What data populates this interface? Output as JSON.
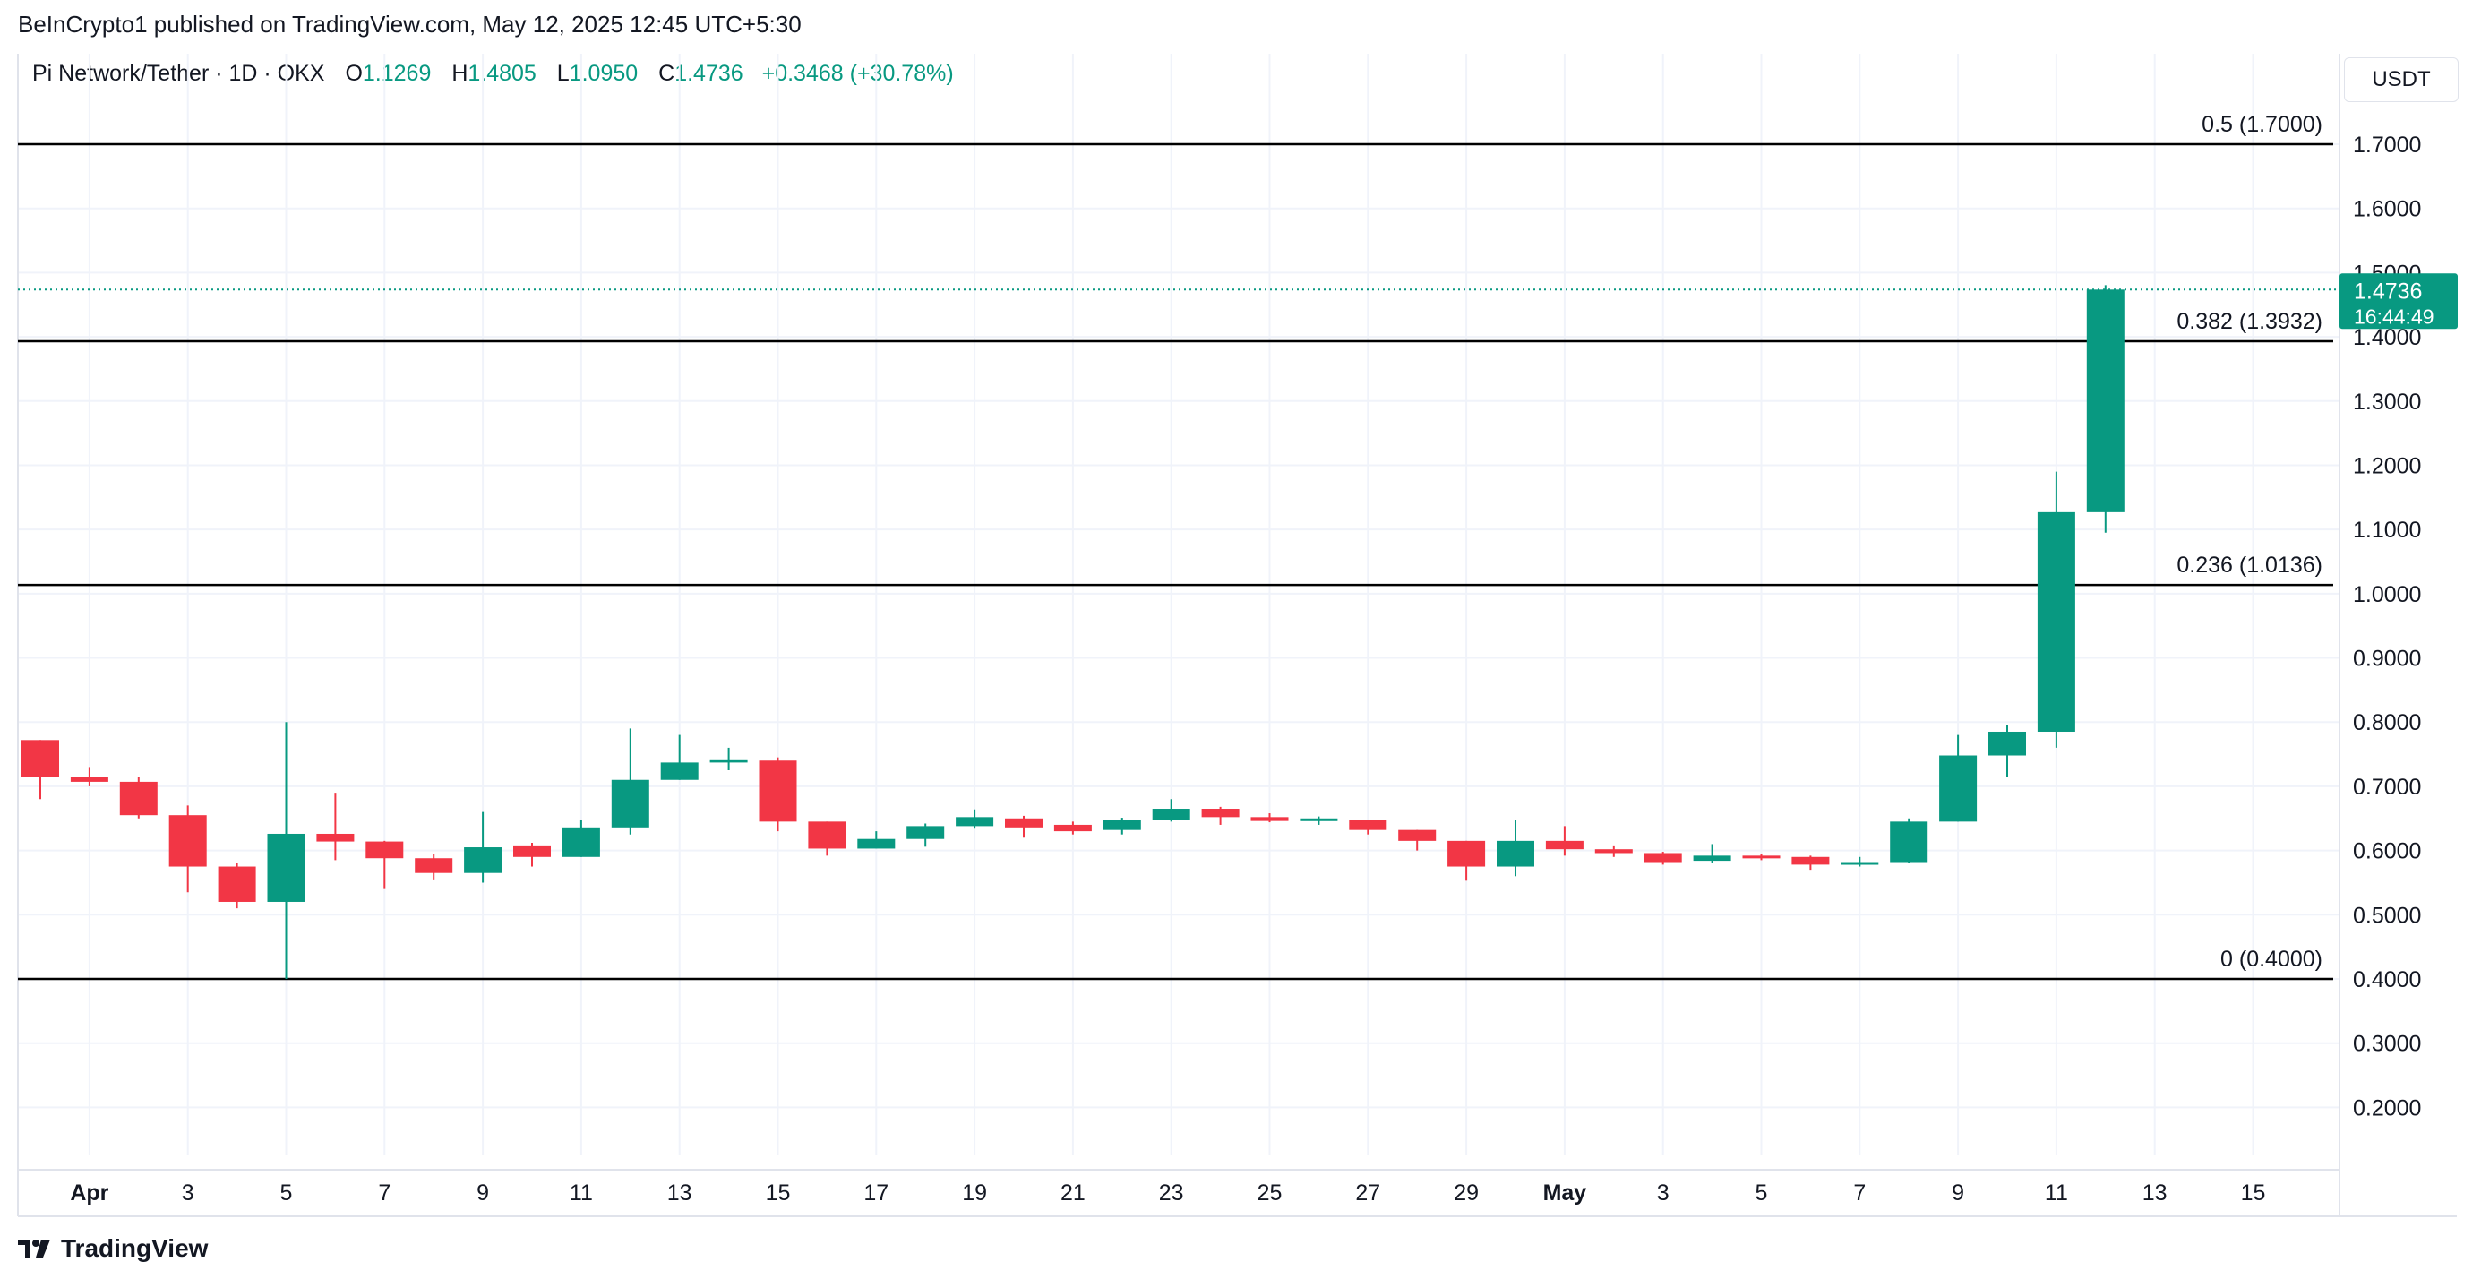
{
  "header": {
    "publisher_line": "BeInCrypto1 published on TradingView.com, May 12, 2025 12:45 UTC+5:30",
    "symbol": "Pi Network/Tether · 1D · OKX",
    "open_label": "O",
    "open_value": "1.1269",
    "high_label": "H",
    "high_value": "1.4805",
    "low_label": "L",
    "low_value": "1.0950",
    "close_label": "C",
    "close_value": "1.4736",
    "change": "+0.3468 (+30.78%)"
  },
  "currency_button": "USDT",
  "footer": {
    "brand": "TradingView"
  },
  "colors": {
    "up": "#089981",
    "down": "#f23645",
    "grid": "#f0f3fa",
    "text": "#131722",
    "fib": "#000000"
  },
  "chart_data": {
    "type": "candlestick",
    "title": "Pi Network/Tether · 1D · OKX",
    "ylabel": "USDT",
    "ylim": [
      0.1,
      1.8
    ],
    "y_ticks": [
      "0.2000",
      "0.3000",
      "0.4000",
      "0.5000",
      "0.6000",
      "0.7000",
      "0.8000",
      "0.9000",
      "1.0000",
      "1.1000",
      "1.2000",
      "1.3000",
      "1.4000",
      "1.5000",
      "1.6000",
      "1.7000"
    ],
    "x_ticks": [
      {
        "day": 1,
        "label": "Apr",
        "bold": true
      },
      {
        "day": 3,
        "label": "3"
      },
      {
        "day": 5,
        "label": "5"
      },
      {
        "day": 7,
        "label": "7"
      },
      {
        "day": 9,
        "label": "9"
      },
      {
        "day": 11,
        "label": "11"
      },
      {
        "day": 13,
        "label": "13"
      },
      {
        "day": 15,
        "label": "15"
      },
      {
        "day": 17,
        "label": "17"
      },
      {
        "day": 19,
        "label": "19"
      },
      {
        "day": 21,
        "label": "21"
      },
      {
        "day": 23,
        "label": "23"
      },
      {
        "day": 25,
        "label": "25"
      },
      {
        "day": 27,
        "label": "27"
      },
      {
        "day": 29,
        "label": "29"
      },
      {
        "day": 31,
        "label": "May",
        "bold": true
      },
      {
        "day": 33,
        "label": "3"
      },
      {
        "day": 35,
        "label": "5"
      },
      {
        "day": 37,
        "label": "7"
      },
      {
        "day": 39,
        "label": "9"
      },
      {
        "day": 41,
        "label": "11"
      },
      {
        "day": 43,
        "label": "13"
      },
      {
        "day": 45,
        "label": "15"
      }
    ],
    "fib_levels": [
      {
        "ratio": "0.5",
        "value": 1.7,
        "label": "0.5 (1.7000)"
      },
      {
        "ratio": "0.382",
        "value": 1.3932,
        "label": "0.382 (1.3932)"
      },
      {
        "ratio": "0.236",
        "value": 1.0136,
        "label": "0.236 (1.0136)"
      },
      {
        "ratio": "0",
        "value": 0.4,
        "label": "0 (0.4000)"
      }
    ],
    "last_price": {
      "value": 1.4736,
      "label": "1.4736",
      "countdown": "16:44:49"
    },
    "candles": [
      {
        "day": 0,
        "date": "Mar 31",
        "o": 0.772,
        "h": 0.772,
        "l": 0.68,
        "c": 0.715
      },
      {
        "day": 1,
        "date": "Apr 1",
        "o": 0.715,
        "h": 0.73,
        "l": 0.7,
        "c": 0.707
      },
      {
        "day": 2,
        "date": "Apr 2",
        "o": 0.707,
        "h": 0.715,
        "l": 0.65,
        "c": 0.655
      },
      {
        "day": 3,
        "date": "Apr 3",
        "o": 0.655,
        "h": 0.67,
        "l": 0.535,
        "c": 0.575
      },
      {
        "day": 4,
        "date": "Apr 4",
        "o": 0.575,
        "h": 0.58,
        "l": 0.51,
        "c": 0.52
      },
      {
        "day": 5,
        "date": "Apr 5",
        "o": 0.52,
        "h": 0.8,
        "l": 0.4,
        "c": 0.626
      },
      {
        "day": 6,
        "date": "Apr 6",
        "o": 0.626,
        "h": 0.69,
        "l": 0.585,
        "c": 0.614
      },
      {
        "day": 7,
        "date": "Apr 7",
        "o": 0.614,
        "h": 0.615,
        "l": 0.54,
        "c": 0.588
      },
      {
        "day": 8,
        "date": "Apr 8",
        "o": 0.588,
        "h": 0.595,
        "l": 0.555,
        "c": 0.565
      },
      {
        "day": 9,
        "date": "Apr 9",
        "o": 0.565,
        "h": 0.66,
        "l": 0.55,
        "c": 0.605
      },
      {
        "day": 10,
        "date": "Apr 10",
        "o": 0.608,
        "h": 0.612,
        "l": 0.575,
        "c": 0.59
      },
      {
        "day": 11,
        "date": "Apr 11",
        "o": 0.59,
        "h": 0.648,
        "l": 0.59,
        "c": 0.636
      },
      {
        "day": 12,
        "date": "Apr 12",
        "o": 0.636,
        "h": 0.79,
        "l": 0.625,
        "c": 0.71
      },
      {
        "day": 13,
        "date": "Apr 13",
        "o": 0.71,
        "h": 0.78,
        "l": 0.71,
        "c": 0.737
      },
      {
        "day": 14,
        "date": "Apr 14",
        "o": 0.737,
        "h": 0.76,
        "l": 0.725,
        "c": 0.742
      },
      {
        "day": 15,
        "date": "Apr 15",
        "o": 0.74,
        "h": 0.745,
        "l": 0.63,
        "c": 0.645
      },
      {
        "day": 16,
        "date": "Apr 16",
        "o": 0.645,
        "h": 0.645,
        "l": 0.592,
        "c": 0.603
      },
      {
        "day": 17,
        "date": "Apr 17",
        "o": 0.603,
        "h": 0.63,
        "l": 0.603,
        "c": 0.618
      },
      {
        "day": 18,
        "date": "Apr 18",
        "o": 0.618,
        "h": 0.642,
        "l": 0.606,
        "c": 0.638
      },
      {
        "day": 19,
        "date": "Apr 19",
        "o": 0.638,
        "h": 0.664,
        "l": 0.634,
        "c": 0.652
      },
      {
        "day": 20,
        "date": "Apr 20",
        "o": 0.65,
        "h": 0.654,
        "l": 0.62,
        "c": 0.636
      },
      {
        "day": 21,
        "date": "Apr 21",
        "o": 0.64,
        "h": 0.645,
        "l": 0.625,
        "c": 0.63
      },
      {
        "day": 22,
        "date": "Apr 22",
        "o": 0.632,
        "h": 0.651,
        "l": 0.625,
        "c": 0.648
      },
      {
        "day": 23,
        "date": "Apr 23",
        "o": 0.648,
        "h": 0.68,
        "l": 0.645,
        "c": 0.665
      },
      {
        "day": 24,
        "date": "Apr 24",
        "o": 0.665,
        "h": 0.668,
        "l": 0.64,
        "c": 0.652
      },
      {
        "day": 25,
        "date": "Apr 25",
        "o": 0.652,
        "h": 0.658,
        "l": 0.644,
        "c": 0.646
      },
      {
        "day": 26,
        "date": "Apr 26",
        "o": 0.646,
        "h": 0.653,
        "l": 0.64,
        "c": 0.65
      },
      {
        "day": 27,
        "date": "Apr 27",
        "o": 0.648,
        "h": 0.648,
        "l": 0.625,
        "c": 0.632
      },
      {
        "day": 28,
        "date": "Apr 28",
        "o": 0.632,
        "h": 0.632,
        "l": 0.6,
        "c": 0.615
      },
      {
        "day": 29,
        "date": "Apr 29",
        "o": 0.615,
        "h": 0.615,
        "l": 0.553,
        "c": 0.575
      },
      {
        "day": 30,
        "date": "Apr 30",
        "o": 0.575,
        "h": 0.648,
        "l": 0.56,
        "c": 0.615
      },
      {
        "day": 31,
        "date": "May 1",
        "o": 0.615,
        "h": 0.638,
        "l": 0.592,
        "c": 0.602
      },
      {
        "day": 32,
        "date": "May 2",
        "o": 0.602,
        "h": 0.608,
        "l": 0.59,
        "c": 0.596
      },
      {
        "day": 33,
        "date": "May 3",
        "o": 0.596,
        "h": 0.598,
        "l": 0.578,
        "c": 0.582
      },
      {
        "day": 34,
        "date": "May 4",
        "o": 0.584,
        "h": 0.61,
        "l": 0.58,
        "c": 0.592
      },
      {
        "day": 35,
        "date": "May 5",
        "o": 0.592,
        "h": 0.595,
        "l": 0.585,
        "c": 0.589
      },
      {
        "day": 36,
        "date": "May 6",
        "o": 0.59,
        "h": 0.592,
        "l": 0.57,
        "c": 0.578
      },
      {
        "day": 37,
        "date": "May 7",
        "o": 0.578,
        "h": 0.59,
        "l": 0.575,
        "c": 0.582
      },
      {
        "day": 38,
        "date": "May 8",
        "o": 0.582,
        "h": 0.65,
        "l": 0.58,
        "c": 0.645
      },
      {
        "day": 39,
        "date": "May 9",
        "o": 0.645,
        "h": 0.78,
        "l": 0.645,
        "c": 0.748
      },
      {
        "day": 40,
        "date": "May 10",
        "o": 0.748,
        "h": 0.795,
        "l": 0.715,
        "c": 0.785
      },
      {
        "day": 41,
        "date": "May 11",
        "o": 0.785,
        "h": 1.19,
        "l": 0.76,
        "c": 1.1269
      },
      {
        "day": 42,
        "date": "May 12",
        "o": 1.1269,
        "h": 1.4805,
        "l": 1.095,
        "c": 1.4736
      }
    ]
  }
}
